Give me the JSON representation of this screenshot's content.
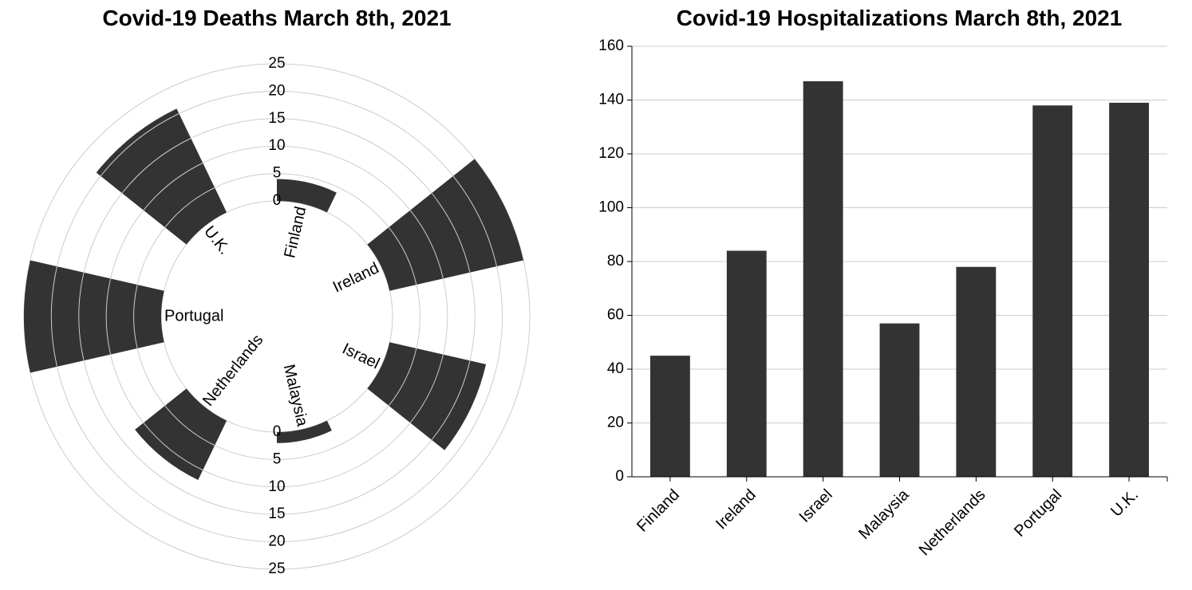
{
  "chart_data": [
    {
      "type": "radial-bar",
      "title": "Covid-19 Deaths March 8th, 2021",
      "categories": [
        "Finland",
        "Ireland",
        "Israel",
        "Malaysia",
        "Netherlands",
        "Portugal",
        "U.K."
      ],
      "values": [
        4,
        25,
        18,
        2,
        12,
        25,
        21
      ],
      "scale_ticks": [
        0,
        5,
        10,
        15,
        20,
        25
      ],
      "ylim": [
        0,
        25
      ],
      "bar_color": "#333333",
      "grid": true
    },
    {
      "type": "bar",
      "title": "Covid-19 Hospitalizations March 8th, 2021",
      "categories": [
        "Finland",
        "Ireland",
        "Israel",
        "Malaysia",
        "Netherlands",
        "Portugal",
        "U.K."
      ],
      "values": [
        45,
        84,
        147,
        57,
        78,
        138,
        139
      ],
      "y_ticks": [
        0,
        20,
        40,
        60,
        80,
        100,
        120,
        140,
        160
      ],
      "ylim": [
        0,
        160
      ],
      "bar_color": "#333333",
      "grid": true
    }
  ]
}
